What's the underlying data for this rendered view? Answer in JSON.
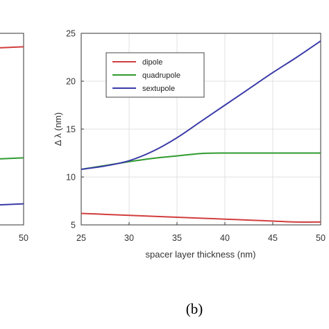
{
  "panel_label": "(b)",
  "left_panel": {
    "x_tick_label": "50",
    "series": [
      {
        "color": "#d23c3c",
        "level": 0.93
      },
      {
        "color": "#2e9a2e",
        "level": 0.35
      },
      {
        "color": "#3a3aa8",
        "level": 0.11
      }
    ]
  },
  "chart_data": {
    "type": "line",
    "title": "",
    "xlabel": "spacer layer thickness (nm)",
    "ylabel": "Δ λ (nm)",
    "xlim": [
      25,
      50
    ],
    "ylim": [
      5,
      25
    ],
    "xticks": [
      25,
      30,
      35,
      40,
      45,
      50
    ],
    "yticks": [
      5,
      10,
      15,
      20,
      25
    ],
    "grid": true,
    "legend_position": "top-left",
    "series": [
      {
        "name": "dipole",
        "color": "#d23c3c",
        "x": [
          25,
          27.5,
          30,
          32.5,
          35,
          37.5,
          40,
          42.5,
          45,
          47.5,
          50
        ],
        "y": [
          6.2,
          6.1,
          6.0,
          5.9,
          5.8,
          5.7,
          5.6,
          5.5,
          5.4,
          5.3,
          5.3
        ]
      },
      {
        "name": "quadrupole",
        "color": "#2e9a2e",
        "x": [
          25,
          27.5,
          30,
          32.5,
          35,
          37.5,
          40,
          42.5,
          45,
          47.5,
          50
        ],
        "y": [
          10.8,
          11.2,
          11.6,
          11.95,
          12.2,
          12.45,
          12.5,
          12.5,
          12.5,
          12.5,
          12.5
        ]
      },
      {
        "name": "sextupole",
        "color": "#3a3aa8",
        "x": [
          25,
          27.5,
          30,
          32.5,
          35,
          37.5,
          40,
          42.5,
          45,
          47.5,
          50
        ],
        "y": [
          10.8,
          11.15,
          11.7,
          12.7,
          14.1,
          15.8,
          17.5,
          19.2,
          20.9,
          22.5,
          24.2
        ]
      }
    ]
  }
}
